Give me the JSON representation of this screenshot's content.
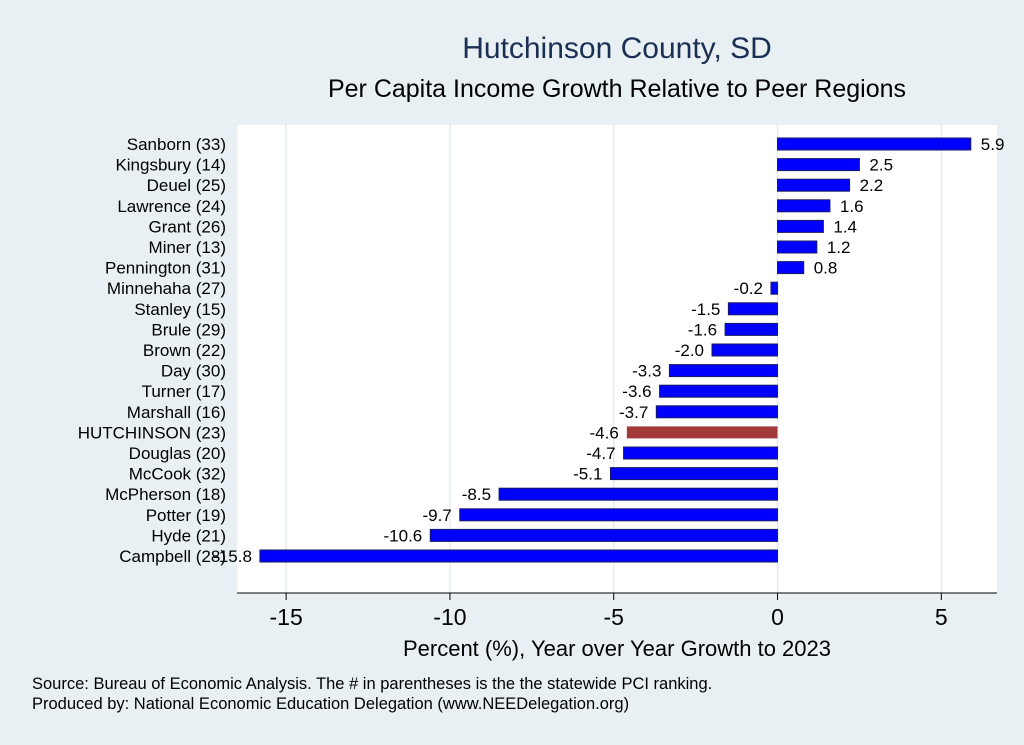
{
  "chart_data": {
    "type": "bar",
    "orientation": "horizontal",
    "title": "Hutchinson County, SD",
    "subtitle": "Per Capita Income Growth Relative to Peer Regions",
    "xlabel": "Percent (%), Year over Year Growth to 2023",
    "ylabel": "",
    "xlim": [
      -16.5,
      6.7
    ],
    "xticks": [
      -15,
      -10,
      -5,
      0,
      5
    ],
    "xtick_labels": [
      "-15",
      "-10",
      "-5",
      "0",
      "5"
    ],
    "grid": true,
    "categories": [
      "Sanborn (33)",
      "Kingsbury (14)",
      "Deuel (25)",
      "Lawrence (24)",
      "Grant (26)",
      "Miner (13)",
      "Pennington (31)",
      "Minnehaha (27)",
      "Stanley (15)",
      "Brule (29)",
      "Brown (22)",
      "Day (30)",
      "Turner (17)",
      "Marshall (16)",
      "HUTCHINSON (23)",
      "Douglas (20)",
      "McCook (32)",
      "McPherson (18)",
      "Potter (19)",
      "Hyde (21)",
      "Campbell (28)"
    ],
    "values": [
      5.9,
      2.5,
      2.2,
      1.6,
      1.4,
      1.2,
      0.8,
      -0.2,
      -1.5,
      -1.6,
      -2.0,
      -3.3,
      -3.6,
      -3.7,
      -4.6,
      -4.7,
      -5.1,
      -8.5,
      -9.7,
      -10.6,
      -15.8
    ],
    "value_labels": [
      "5.9",
      "2.5",
      "2.2",
      "1.6",
      "1.4",
      "1.2",
      "0.8",
      "-0.2",
      "-1.5",
      "-1.6",
      "-2.0",
      "-3.3",
      "-3.6",
      "-3.7",
      "-4.6",
      "-4.7",
      "-5.1",
      "-8.5",
      "-9.7",
      "-10.6",
      "-15.8"
    ],
    "highlight": "HUTCHINSON (23)",
    "colors": {
      "bar": "#0000ff",
      "bar_edge": "#1a1a66",
      "highlight": "#a33a3a",
      "plot_bg": "#ffffff",
      "page_bg": "#e9f0f3",
      "grid": "#e3ecef",
      "title": "#1b2f55"
    }
  },
  "notes": {
    "source": "Source: Bureau of Economic Analysis. The # in parentheses is the the statewide PCI ranking.",
    "produced_by": "Produced by: National Economic Education Delegation (www.NEEDelegation.org)"
  }
}
